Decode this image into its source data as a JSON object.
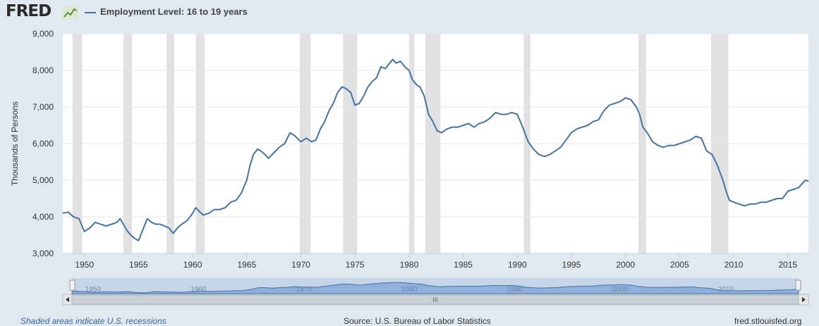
{
  "header": {
    "logo_text": "FRED",
    "series_label": "Employment Level: 16 to 19 years",
    "line_color": "#4572a7"
  },
  "footer": {
    "recession_note": "Shaded areas indicate U.S. recessions",
    "source": "Source: U.S. Bureau of Labor Statistics",
    "site": "fred.stlouisfed.org"
  },
  "chart_data": {
    "type": "line",
    "title": "",
    "xlabel": "",
    "ylabel": "Thousands of Persons",
    "xlim": [
      1948.0,
      2016.9
    ],
    "ylim": [
      3000,
      9000
    ],
    "y_ticks": [
      3000,
      4000,
      5000,
      6000,
      7000,
      8000,
      9000
    ],
    "y_tick_labels": [
      "3,000",
      "4,000",
      "5,000",
      "6,000",
      "7,000",
      "8,000",
      "9,000"
    ],
    "x_ticks": [
      1950,
      1955,
      1960,
      1965,
      1970,
      1975,
      1980,
      1985,
      1990,
      1995,
      2000,
      2005,
      2010,
      2015
    ],
    "x_tick_labels": [
      "1950",
      "1955",
      "1960",
      "1965",
      "1970",
      "1975",
      "1980",
      "1985",
      "1990",
      "1995",
      "2000",
      "2005",
      "2010",
      "2015"
    ],
    "grid": "horizontal",
    "recessions": [
      [
        1948.9,
        1949.8
      ],
      [
        1953.6,
        1954.4
      ],
      [
        1957.6,
        1958.3
      ],
      [
        1960.3,
        1961.1
      ],
      [
        1969.9,
        1970.9
      ],
      [
        1973.9,
        1975.2
      ],
      [
        1980.0,
        1980.5
      ],
      [
        1981.5,
        1982.9
      ],
      [
        1990.6,
        1991.2
      ],
      [
        2001.2,
        2001.9
      ],
      [
        2007.9,
        2009.5
      ]
    ],
    "series": [
      {
        "x": [
          1948.0,
          1948.5,
          1949.0,
          1949.5,
          1950.0,
          1950.5,
          1951.0,
          1951.5,
          1952.0,
          1952.5,
          1953.0,
          1953.3,
          1953.7,
          1954.0,
          1954.3,
          1954.6,
          1955.0,
          1955.4,
          1955.8,
          1956.2,
          1956.6,
          1957.0,
          1957.4,
          1957.8,
          1958.2,
          1958.6,
          1959.0,
          1959.5,
          1960.0,
          1960.3,
          1960.6,
          1961.0,
          1961.5,
          1962.0,
          1962.5,
          1963.0,
          1963.5,
          1964.0,
          1964.5,
          1965.0,
          1965.3,
          1965.6,
          1966.0,
          1966.3,
          1966.7,
          1967.0,
          1967.5,
          1968.0,
          1968.5,
          1969.0,
          1969.5,
          1970.0,
          1970.5,
          1971.0,
          1971.4,
          1971.8,
          1972.2,
          1972.6,
          1973.0,
          1973.4,
          1973.8,
          1974.2,
          1974.6,
          1975.0,
          1975.4,
          1975.8,
          1976.2,
          1976.6,
          1977.0,
          1977.4,
          1977.8,
          1978.2,
          1978.5,
          1978.8,
          1979.2,
          1979.6,
          1980.0,
          1980.3,
          1980.7,
          1981.0,
          1981.4,
          1981.8,
          1982.2,
          1982.6,
          1983.0,
          1983.5,
          1984.0,
          1984.5,
          1985.0,
          1985.5,
          1986.0,
          1986.5,
          1987.0,
          1987.5,
          1988.0,
          1988.5,
          1989.0,
          1989.5,
          1990.0,
          1990.5,
          1991.0,
          1991.5,
          1992.0,
          1992.5,
          1993.0,
          1993.5,
          1994.0,
          1994.5,
          1995.0,
          1995.5,
          1996.0,
          1996.5,
          1997.0,
          1997.5,
          1998.0,
          1998.5,
          1999.0,
          1999.5,
          2000.0,
          2000.5,
          2001.0,
          2001.3,
          2001.6,
          2002.0,
          2002.5,
          2003.0,
          2003.5,
          2004.0,
          2004.5,
          2005.0,
          2005.5,
          2006.0,
          2006.5,
          2007.0,
          2007.5,
          2008.0,
          2008.5,
          2009.0,
          2009.3,
          2009.6,
          2010.0,
          2010.5,
          2011.0,
          2011.5,
          2012.0,
          2012.5,
          2013.0,
          2013.5,
          2014.0,
          2014.5,
          2015.0,
          2015.5,
          2016.0,
          2016.3,
          2016.6,
          2016.9
        ],
        "y": [
          4100,
          4130,
          4000,
          3950,
          3600,
          3700,
          3850,
          3800,
          3750,
          3800,
          3850,
          3950,
          3750,
          3600,
          3500,
          3420,
          3350,
          3650,
          3950,
          3850,
          3800,
          3800,
          3750,
          3700,
          3550,
          3700,
          3800,
          3900,
          4100,
          4250,
          4150,
          4050,
          4100,
          4200,
          4200,
          4250,
          4400,
          4450,
          4650,
          5000,
          5400,
          5700,
          5850,
          5800,
          5700,
          5600,
          5750,
          5900,
          6000,
          6300,
          6200,
          6050,
          6150,
          6050,
          6100,
          6400,
          6600,
          6900,
          7100,
          7400,
          7550,
          7500,
          7400,
          7050,
          7100,
          7300,
          7550,
          7700,
          7800,
          8100,
          8050,
          8200,
          8300,
          8200,
          8250,
          8100,
          8000,
          7750,
          7600,
          7550,
          7300,
          6800,
          6600,
          6350,
          6300,
          6400,
          6450,
          6450,
          6500,
          6550,
          6450,
          6550,
          6600,
          6700,
          6850,
          6800,
          6800,
          6850,
          6800,
          6450,
          6050,
          5850,
          5700,
          5650,
          5700,
          5800,
          5900,
          6100,
          6300,
          6400,
          6450,
          6500,
          6600,
          6650,
          6900,
          7050,
          7100,
          7150,
          7250,
          7200,
          7000,
          6800,
          6450,
          6300,
          6050,
          5950,
          5900,
          5950,
          5950,
          6000,
          6050,
          6100,
          6200,
          6150,
          5800,
          5700,
          5400,
          5000,
          4700,
          4450,
          4400,
          4350,
          4300,
          4350,
          4350,
          4400,
          4400,
          4450,
          4500,
          4500,
          4700,
          4750,
          4800,
          4900,
          5000,
          4980
        ]
      }
    ],
    "navigator": {
      "x_tick_labels": [
        "1950",
        "1960",
        "1970",
        "1980",
        "1990",
        "2000",
        "2010"
      ],
      "x_ticks": [
        1950,
        1960,
        1970,
        1980,
        1990,
        2000,
        2010
      ],
      "scroll_grip": "III"
    }
  }
}
